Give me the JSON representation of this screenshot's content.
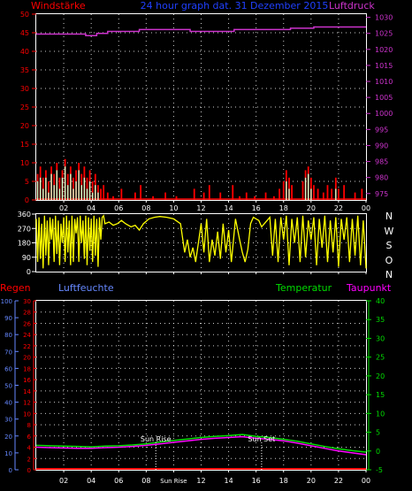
{
  "header": {
    "left_label": "Windstärke",
    "center_label": "24 hour graph dat. 31 Dezember 2015",
    "right_label": "Luftdruck"
  },
  "colors": {
    "wind_label": "#ff0000",
    "title": "#2040ff",
    "pressure": "#cc33cc",
    "wind_bar": "#ff0000",
    "gust_fill": "#ccffcc",
    "direction": "#ffff00",
    "rain": "#ff0000",
    "humidity": "#6688ff",
    "temperature": "#00dd00",
    "dewpoint": "#ff00ff",
    "axis": "#ffffff",
    "grid_dot": "#ffffff"
  },
  "x_axis": {
    "ticks": [
      "02",
      "04",
      "06",
      "08",
      "10",
      "12",
      "14",
      "16",
      "18",
      "20",
      "22",
      "00"
    ],
    "lower_ticks": [
      "02",
      "04",
      "06",
      "08",
      "Sun Rise",
      "12",
      "14",
      "16",
      "18",
      "20",
      "22",
      "00"
    ],
    "range_hours": [
      0,
      24
    ]
  },
  "chart_data": [
    {
      "type": "bar",
      "panel": "wind",
      "left_axis": {
        "label": "Windstärke",
        "ticks": [
          0,
          5,
          10,
          15,
          20,
          25,
          30,
          35,
          40,
          45,
          50
        ],
        "range": [
          0,
          50
        ]
      },
      "right_axis": {
        "label": "Luftdruck",
        "ticks": [
          975,
          980,
          985,
          990,
          995,
          1000,
          1005,
          1010,
          1015,
          1020,
          1025,
          1030
        ],
        "range": [
          973,
          1031
        ]
      },
      "pressure": [
        [
          0,
          1024.8
        ],
        [
          3.6,
          1024.8
        ],
        [
          3.6,
          1024.3
        ],
        [
          4.4,
          1024.3
        ],
        [
          4.4,
          1025.0
        ],
        [
          5.2,
          1025.0
        ],
        [
          5.2,
          1025.6
        ],
        [
          7.5,
          1025.6
        ],
        [
          7.5,
          1026.2
        ],
        [
          11.2,
          1026.2
        ],
        [
          11.2,
          1025.6
        ],
        [
          14.4,
          1025.6
        ],
        [
          14.4,
          1026.2
        ],
        [
          18.5,
          1026.2
        ],
        [
          18.5,
          1026.6
        ],
        [
          20.2,
          1026.6
        ],
        [
          20.2,
          1027.0
        ],
        [
          24,
          1027.0
        ]
      ],
      "wind": [
        [
          0.1,
          7
        ],
        [
          0.3,
          9
        ],
        [
          0.5,
          6
        ],
        [
          0.7,
          8
        ],
        [
          0.9,
          5
        ],
        [
          1.1,
          9
        ],
        [
          1.3,
          7
        ],
        [
          1.5,
          10
        ],
        [
          1.7,
          6
        ],
        [
          1.9,
          8
        ],
        [
          2.1,
          11
        ],
        [
          2.3,
          7
        ],
        [
          2.5,
          9
        ],
        [
          2.7,
          6
        ],
        [
          2.9,
          8
        ],
        [
          3.1,
          10
        ],
        [
          3.3,
          7
        ],
        [
          3.5,
          9
        ],
        [
          3.7,
          6
        ],
        [
          3.9,
          8
        ],
        [
          4.1,
          5
        ],
        [
          4.3,
          7
        ],
        [
          4.5,
          4
        ],
        [
          4.7,
          3
        ],
        [
          4.9,
          4
        ],
        [
          5.2,
          2
        ],
        [
          5.6,
          1
        ],
        [
          6.2,
          3
        ],
        [
          7.2,
          2
        ],
        [
          7.6,
          4
        ],
        [
          8.5,
          1
        ],
        [
          9.4,
          2
        ],
        [
          10.2,
          1
        ],
        [
          11.5,
          3
        ],
        [
          12.2,
          2
        ],
        [
          12.6,
          4
        ],
        [
          13.4,
          2
        ],
        [
          14.3,
          4
        ],
        [
          14.8,
          1
        ],
        [
          15.3,
          2
        ],
        [
          15.9,
          1
        ],
        [
          16.7,
          2
        ],
        [
          17.3,
          1
        ],
        [
          17.7,
          3
        ],
        [
          18.0,
          5
        ],
        [
          18.2,
          8
        ],
        [
          18.4,
          6
        ],
        [
          18.6,
          4
        ],
        [
          19.4,
          5
        ],
        [
          19.6,
          8
        ],
        [
          19.8,
          9
        ],
        [
          20.0,
          6
        ],
        [
          20.2,
          4
        ],
        [
          20.5,
          3
        ],
        [
          20.9,
          2
        ],
        [
          21.2,
          4
        ],
        [
          21.5,
          3
        ],
        [
          21.8,
          6
        ],
        [
          22.0,
          3
        ],
        [
          22.4,
          4
        ],
        [
          23.2,
          2
        ],
        [
          23.7,
          3
        ]
      ],
      "gust": [
        [
          0.1,
          5
        ],
        [
          0.3,
          6
        ],
        [
          0.5,
          3
        ],
        [
          0.7,
          6
        ],
        [
          0.9,
          2
        ],
        [
          1.1,
          7
        ],
        [
          1.3,
          4
        ],
        [
          1.5,
          8
        ],
        [
          1.7,
          3
        ],
        [
          1.9,
          6
        ],
        [
          2.1,
          9
        ],
        [
          2.3,
          4
        ],
        [
          2.5,
          7
        ],
        [
          2.7,
          3
        ],
        [
          2.9,
          5
        ],
        [
          3.1,
          8
        ],
        [
          3.3,
          4
        ],
        [
          3.5,
          6
        ],
        [
          3.7,
          3
        ],
        [
          3.9,
          5
        ],
        [
          4.1,
          2
        ],
        [
          4.3,
          4
        ],
        [
          4.5,
          2
        ],
        [
          18.2,
          5
        ],
        [
          18.4,
          3
        ],
        [
          19.6,
          6
        ],
        [
          19.8,
          7
        ],
        [
          20.0,
          3
        ],
        [
          21.8,
          3
        ]
      ]
    },
    {
      "type": "line",
      "panel": "wind_direction",
      "left_axis": {
        "ticks": [
          0,
          90,
          180,
          270,
          360
        ],
        "range": [
          0,
          360
        ]
      },
      "right_axis": {
        "ticks": [
          "N",
          "W",
          "S",
          "O",
          "N"
        ]
      },
      "direction": [
        [
          0.0,
          330
        ],
        [
          0.1,
          60
        ],
        [
          0.2,
          340
        ],
        [
          0.3,
          80
        ],
        [
          0.4,
          300
        ],
        [
          0.5,
          20
        ],
        [
          0.6,
          350
        ],
        [
          0.7,
          100
        ],
        [
          0.8,
          320
        ],
        [
          0.9,
          40
        ],
        [
          1.0,
          340
        ],
        [
          1.1,
          200
        ],
        [
          1.2,
          330
        ],
        [
          1.3,
          60
        ],
        [
          1.4,
          350
        ],
        [
          1.5,
          110
        ],
        [
          1.6,
          320
        ],
        [
          1.7,
          40
        ],
        [
          1.8,
          300
        ],
        [
          1.9,
          180
        ],
        [
          2.0,
          340
        ],
        [
          2.1,
          60
        ],
        [
          2.2,
          350
        ],
        [
          2.3,
          120
        ],
        [
          2.4,
          320
        ],
        [
          2.5,
          40
        ],
        [
          2.6,
          350
        ],
        [
          2.7,
          60
        ],
        [
          2.8,
          330
        ],
        [
          2.9,
          240
        ],
        [
          3.0,
          340
        ],
        [
          3.1,
          60
        ],
        [
          3.2,
          350
        ],
        [
          3.3,
          180
        ],
        [
          3.4,
          320
        ],
        [
          3.5,
          80
        ],
        [
          3.6,
          350
        ],
        [
          3.7,
          40
        ],
        [
          3.8,
          340
        ],
        [
          3.9,
          130
        ],
        [
          4.0,
          330
        ],
        [
          4.1,
          60
        ],
        [
          4.2,
          350
        ],
        [
          4.3,
          100
        ],
        [
          4.4,
          330
        ],
        [
          4.5,
          30
        ],
        [
          4.6,
          340
        ],
        [
          4.7,
          200
        ],
        [
          4.8,
          340
        ],
        [
          4.9,
          350
        ],
        [
          5.0,
          300
        ],
        [
          5.3,
          310
        ],
        [
          5.6,
          290
        ],
        [
          5.9,
          300
        ],
        [
          6.2,
          320
        ],
        [
          6.5,
          300
        ],
        [
          6.9,
          280
        ],
        [
          7.2,
          290
        ],
        [
          7.5,
          260
        ],
        [
          7.8,
          300
        ],
        [
          8.2,
          330
        ],
        [
          8.6,
          340
        ],
        [
          9.0,
          345
        ],
        [
          9.5,
          340
        ],
        [
          10.0,
          330
        ],
        [
          10.5,
          300
        ],
        [
          10.8,
          120
        ],
        [
          11.0,
          200
        ],
        [
          11.2,
          90
        ],
        [
          11.4,
          150
        ],
        [
          11.6,
          60
        ],
        [
          11.8,
          180
        ],
        [
          12.0,
          300
        ],
        [
          12.2,
          120
        ],
        [
          12.4,
          330
        ],
        [
          12.6,
          60
        ],
        [
          12.8,
          200
        ],
        [
          13.0,
          100
        ],
        [
          13.2,
          250
        ],
        [
          13.4,
          80
        ],
        [
          13.6,
          300
        ],
        [
          13.8,
          120
        ],
        [
          14.0,
          260
        ],
        [
          14.2,
          60
        ],
        [
          14.5,
          330
        ],
        [
          14.8,
          200
        ],
        [
          15.0,
          120
        ],
        [
          15.2,
          60
        ],
        [
          15.4,
          140
        ],
        [
          15.6,
          300
        ],
        [
          15.8,
          340
        ],
        [
          16.0,
          330
        ],
        [
          16.2,
          320
        ],
        [
          16.4,
          280
        ],
        [
          16.6,
          300
        ],
        [
          16.8,
          320
        ],
        [
          17.0,
          340
        ],
        [
          17.2,
          100
        ],
        [
          17.4,
          330
        ],
        [
          17.6,
          60
        ],
        [
          17.8,
          340
        ],
        [
          18.0,
          200
        ],
        [
          18.2,
          350
        ],
        [
          18.4,
          40
        ],
        [
          18.6,
          330
        ],
        [
          18.8,
          180
        ],
        [
          19.0,
          340
        ],
        [
          19.2,
          60
        ],
        [
          19.4,
          350
        ],
        [
          19.6,
          90
        ],
        [
          19.8,
          320
        ],
        [
          20.0,
          200
        ],
        [
          20.2,
          340
        ],
        [
          20.4,
          40
        ],
        [
          20.6,
          330
        ],
        [
          20.8,
          150
        ],
        [
          21.0,
          350
        ],
        [
          21.2,
          60
        ],
        [
          21.4,
          320
        ],
        [
          21.6,
          120
        ],
        [
          21.8,
          340
        ],
        [
          22.0,
          30
        ],
        [
          22.2,
          330
        ],
        [
          22.4,
          200
        ],
        [
          22.6,
          340
        ],
        [
          22.8,
          60
        ],
        [
          23.0,
          330
        ],
        [
          23.2,
          100
        ],
        [
          23.4,
          350
        ],
        [
          23.6,
          40
        ],
        [
          23.8,
          320
        ],
        [
          24.0,
          20
        ]
      ]
    },
    {
      "type": "line",
      "panel": "temperature",
      "labels": {
        "rain": "Regen",
        "humidity": "Luftfeuchte",
        "temperature": "Temperatur",
        "dewpoint": "Taupunkt",
        "sunrise": "Sun Rise",
        "sunset": "Sun Set"
      },
      "humidity_axis": {
        "ticks": [
          0,
          10,
          20,
          30,
          40,
          50,
          60,
          70,
          80,
          90,
          100
        ],
        "range": [
          0,
          100
        ]
      },
      "rain_axis": {
        "ticks": [
          0,
          2,
          4,
          6,
          8,
          10,
          12,
          14,
          16,
          18,
          20,
          22,
          24,
          26,
          28,
          30
        ],
        "range": [
          0,
          30
        ]
      },
      "temperature_axis": {
        "ticks": [
          -5,
          0,
          5,
          10,
          15,
          20,
          25,
          30,
          35,
          40
        ],
        "range": [
          -5,
          40
        ]
      },
      "sunrise_hour": 8.7,
      "sunset_hour": 16.4,
      "temperature": [
        [
          0,
          1.5
        ],
        [
          1,
          1.4
        ],
        [
          2,
          1.3
        ],
        [
          3,
          1.2
        ],
        [
          4,
          1.1
        ],
        [
          5,
          1.3
        ],
        [
          6,
          1.4
        ],
        [
          7,
          1.6
        ],
        [
          8,
          1.9
        ],
        [
          9,
          2.4
        ],
        [
          10,
          2.8
        ],
        [
          11,
          3.2
        ],
        [
          12,
          3.6
        ],
        [
          13,
          3.9
        ],
        [
          14,
          4.1
        ],
        [
          15,
          4.4
        ],
        [
          16,
          3.9
        ],
        [
          17,
          3.6
        ],
        [
          18,
          3.1
        ],
        [
          19,
          2.6
        ],
        [
          20,
          1.9
        ],
        [
          21,
          1.2
        ],
        [
          22,
          0.6
        ],
        [
          23,
          0.1
        ],
        [
          24,
          -0.3
        ]
      ],
      "dewpoint": [
        [
          0,
          1.0
        ],
        [
          1,
          0.9
        ],
        [
          2,
          0.8
        ],
        [
          3,
          0.7
        ],
        [
          4,
          0.7
        ],
        [
          5,
          0.9
        ],
        [
          6,
          1.0
        ],
        [
          7,
          1.2
        ],
        [
          8,
          1.5
        ],
        [
          9,
          1.9
        ],
        [
          10,
          2.3
        ],
        [
          11,
          2.7
        ],
        [
          12,
          3.1
        ],
        [
          13,
          3.4
        ],
        [
          14,
          3.6
        ],
        [
          15,
          3.8
        ],
        [
          16,
          3.4
        ],
        [
          17,
          3.1
        ],
        [
          18,
          2.7
        ],
        [
          19,
          2.1
        ],
        [
          20,
          1.4
        ],
        [
          21,
          0.7
        ],
        [
          22,
          0.0
        ],
        [
          23,
          -0.5
        ],
        [
          24,
          -1.0
        ]
      ],
      "rain": [
        [
          0,
          0
        ],
        [
          24,
          0
        ]
      ]
    }
  ]
}
